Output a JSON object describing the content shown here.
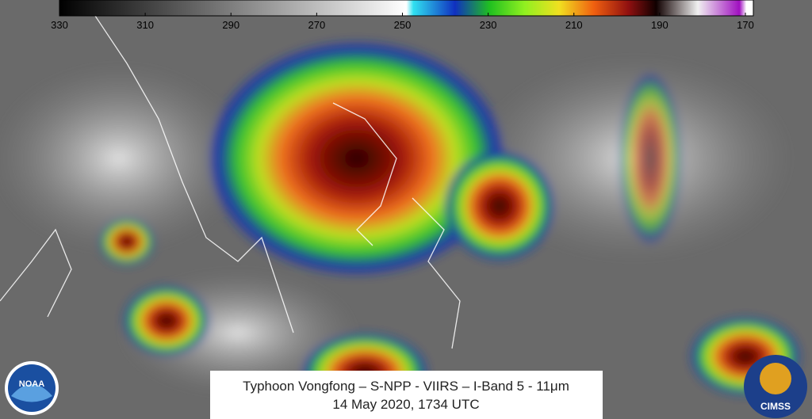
{
  "colorbar": {
    "ticks": [
      330,
      310,
      290,
      270,
      250,
      230,
      210,
      190,
      170
    ]
  },
  "caption": {
    "line1": "Typhoon Vongfong – S-NPP - VIIRS – I-Band 5 - 11μm",
    "line2": "14 May 2020, 1734 UTC"
  },
  "logos": {
    "noaa": "NOAA",
    "cimss": "CIMSS"
  }
}
